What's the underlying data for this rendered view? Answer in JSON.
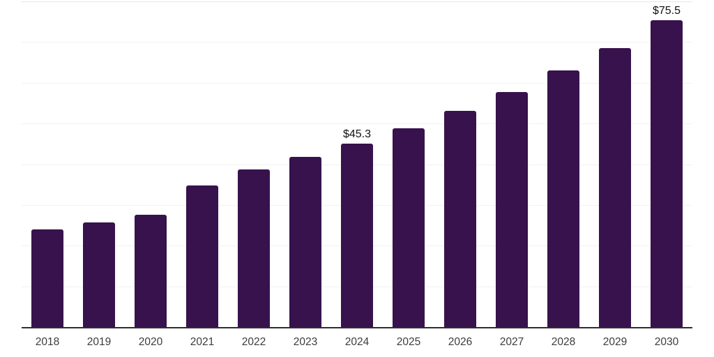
{
  "chart_data": {
    "type": "bar",
    "title": "",
    "xlabel": "",
    "ylabel": "",
    "categories": [
      "2018",
      "2019",
      "2020",
      "2021",
      "2022",
      "2023",
      "2024",
      "2025",
      "2026",
      "2027",
      "2028",
      "2029",
      "2030"
    ],
    "values": [
      24.1,
      25.8,
      27.8,
      34.9,
      38.9,
      42.0,
      45.3,
      49.0,
      53.3,
      57.9,
      63.3,
      68.7,
      75.5
    ],
    "data_labels": [
      "",
      "",
      "",
      "",
      "",
      "",
      "$45.3",
      "",
      "",
      "",
      "",
      "",
      "$75.5"
    ],
    "ylim": [
      0,
      80
    ],
    "gridline_interval": 10,
    "grid": "horizontal",
    "legend": "none",
    "bar_color": "#37124d",
    "axis_line_color": "#2e2e2e",
    "gridline_color": "#f1f1f1",
    "tick_label_color": "#3c3c3c",
    "data_label_color": "#111111",
    "background_color": "#ffffff"
  }
}
